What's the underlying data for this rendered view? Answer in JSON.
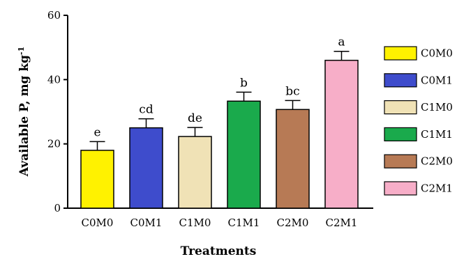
{
  "chart_data": {
    "type": "bar",
    "xlabel": "Treatments",
    "ylabel": "Available P, mg kg",
    "ylabel_superscript": "-1",
    "ylim": [
      0,
      60
    ],
    "yticks": [
      0,
      20,
      40,
      60
    ],
    "categories": [
      "C0M0",
      "C0M1",
      "C1M0",
      "C1M1",
      "C2M0",
      "C2M1"
    ],
    "values": [
      18,
      25,
      22.3,
      33.3,
      30.7,
      46
    ],
    "errors": [
      2.7,
      2.8,
      2.8,
      2.8,
      2.8,
      2.8
    ],
    "significance": [
      "e",
      "cd",
      "de",
      "b",
      "bc",
      "a"
    ],
    "colors": [
      "#fff200",
      "#3e4ccc",
      "#f0e2b6",
      "#1aaa4c",
      "#b77a55",
      "#f7aec8"
    ],
    "legend": {
      "position": "right",
      "entries": [
        "C0M0",
        "C0M1",
        "C1M0",
        "C1M1",
        "C2M0",
        "C2M1"
      ]
    },
    "grid": false
  }
}
